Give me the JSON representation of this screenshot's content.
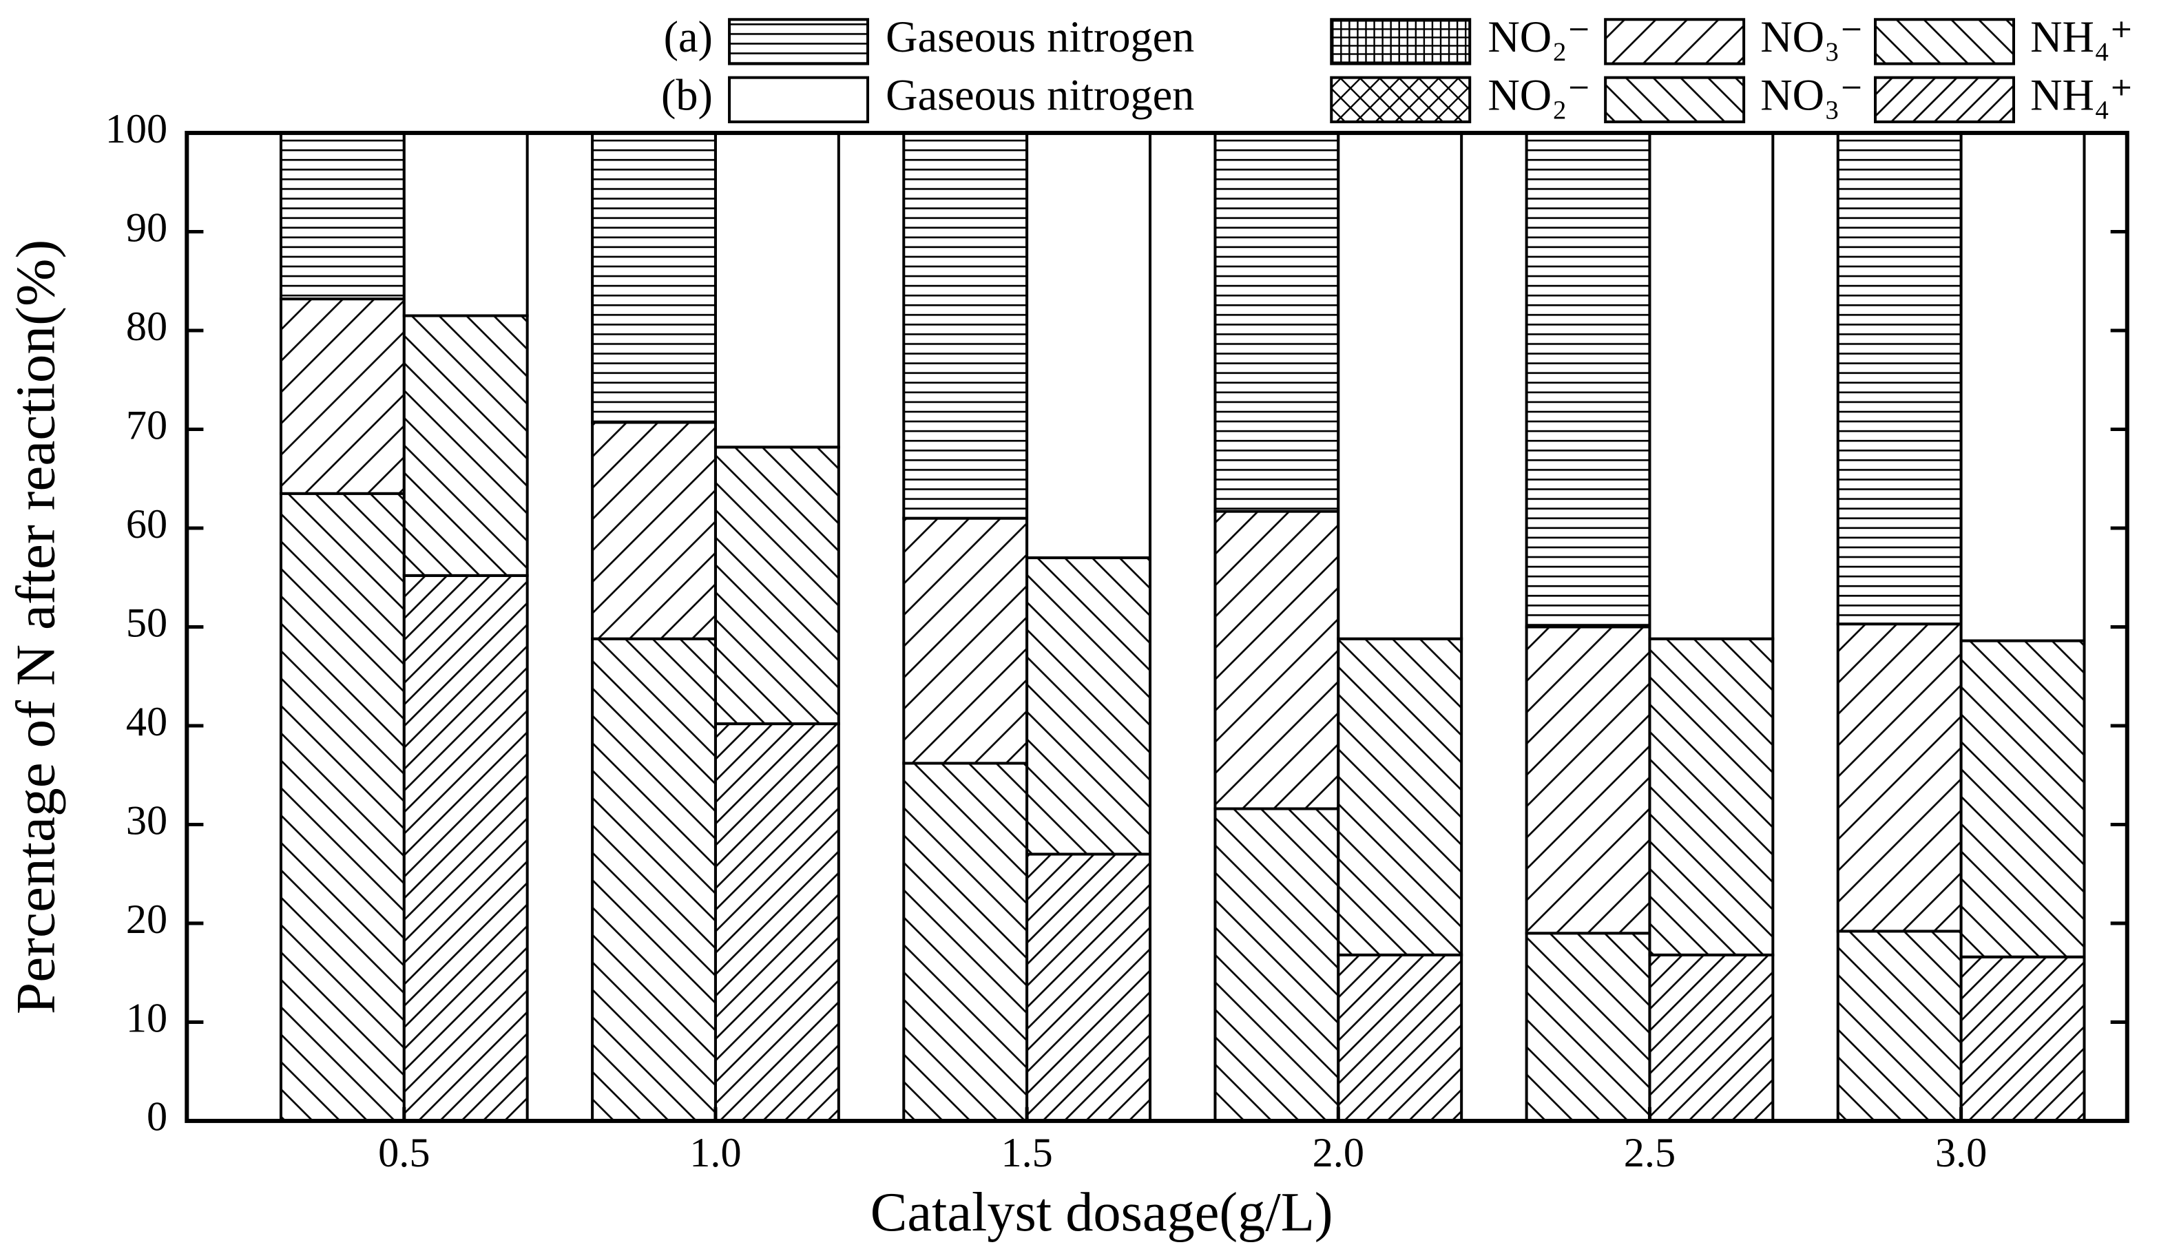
{
  "chart_data": {
    "type": "grouped-stacked-bar",
    "xlabel": "Catalyst dosage(g/L)",
    "ylabel": "Percentage of N after reaction(%)",
    "categories": [
      "0.5",
      "1.0",
      "1.5",
      "2.0",
      "2.5",
      "3.0"
    ],
    "ylim": [
      0,
      100
    ],
    "yticks": [
      0,
      10,
      20,
      30,
      40,
      50,
      60,
      70,
      80,
      90,
      100
    ],
    "groups": [
      {
        "name": "(a)",
        "series": [
          {
            "name": "NH₄⁺",
            "pattern": "diag-down",
            "values": [
              63.5,
              48.8,
              36.2,
              31.6,
              19,
              19.2
            ]
          },
          {
            "name": "NO₃⁻",
            "pattern": "diag-up",
            "values": [
              19.7,
              21.9,
              24.8,
              30.1,
              31,
              31.1
            ]
          },
          {
            "name": "NO₂⁻",
            "pattern": "grid",
            "values": [
              0,
              0,
              0,
              0,
              0,
              0
            ]
          },
          {
            "name": "Gaseous nitrogen",
            "pattern": "horizontal",
            "values": [
              16.8,
              29.3,
              39,
              38.3,
              50,
              49.7
            ]
          }
        ]
      },
      {
        "name": "(b)",
        "series": [
          {
            "name": "NH₄⁺",
            "pattern": "diag-up-dense",
            "values": [
              55.2,
              40.2,
              27,
              16.8,
              16.8,
              16.6
            ]
          },
          {
            "name": "NO₃⁻",
            "pattern": "diag-down",
            "values": [
              26.3,
              28,
              30,
              32,
              32,
              32
            ]
          },
          {
            "name": "NO₂⁻",
            "pattern": "crosshatch",
            "values": [
              0,
              0,
              0,
              0,
              0,
              0
            ]
          },
          {
            "name": "Gaseous nitrogen",
            "pattern": "none",
            "values": [
              18.5,
              31.8,
              43,
              51.2,
              51.2,
              51.4
            ]
          }
        ]
      }
    ]
  }
}
